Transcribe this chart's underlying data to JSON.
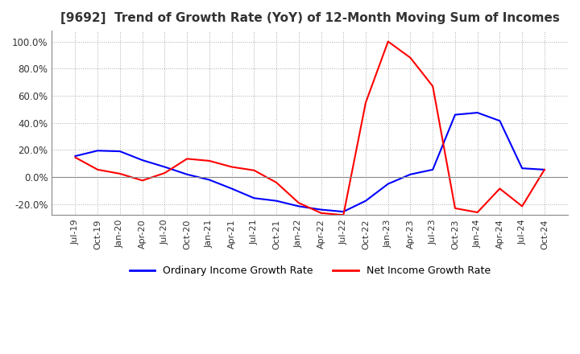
{
  "title": "[9692]  Trend of Growth Rate (YoY) of 12-Month Moving Sum of Incomes",
  "ylim": [
    -0.28,
    1.08
  ],
  "yticks": [
    -0.2,
    0.0,
    0.2,
    0.4,
    0.6,
    0.8,
    1.0
  ],
  "background_color": "#ffffff",
  "ordinary_color": "#0000ff",
  "net_color": "#ff0000",
  "legend_labels": [
    "Ordinary Income Growth Rate",
    "Net Income Growth Rate"
  ],
  "dates": [
    "Jul-19",
    "Oct-19",
    "Jan-20",
    "Apr-20",
    "Jul-20",
    "Oct-20",
    "Jan-21",
    "Apr-21",
    "Jul-21",
    "Oct-21",
    "Jan-22",
    "Apr-22",
    "Jul-22",
    "Oct-22",
    "Jan-23",
    "Apr-23",
    "Jul-23",
    "Oct-23",
    "Jan-24",
    "Apr-24",
    "Jul-24",
    "Oct-24"
  ],
  "ordinary_values": [
    0.155,
    0.195,
    0.19,
    0.125,
    0.075,
    0.02,
    -0.02,
    -0.085,
    -0.155,
    -0.175,
    -0.215,
    -0.24,
    -0.255,
    -0.175,
    -0.05,
    0.02,
    0.055,
    0.46,
    0.475,
    0.415,
    0.065,
    0.055
  ],
  "net_values": [
    0.145,
    0.055,
    0.025,
    -0.025,
    0.03,
    0.135,
    0.12,
    0.075,
    0.05,
    -0.04,
    -0.19,
    -0.265,
    -0.28,
    0.55,
    1.0,
    0.88,
    0.67,
    -0.23,
    -0.26,
    -0.085,
    -0.215,
    0.055
  ]
}
